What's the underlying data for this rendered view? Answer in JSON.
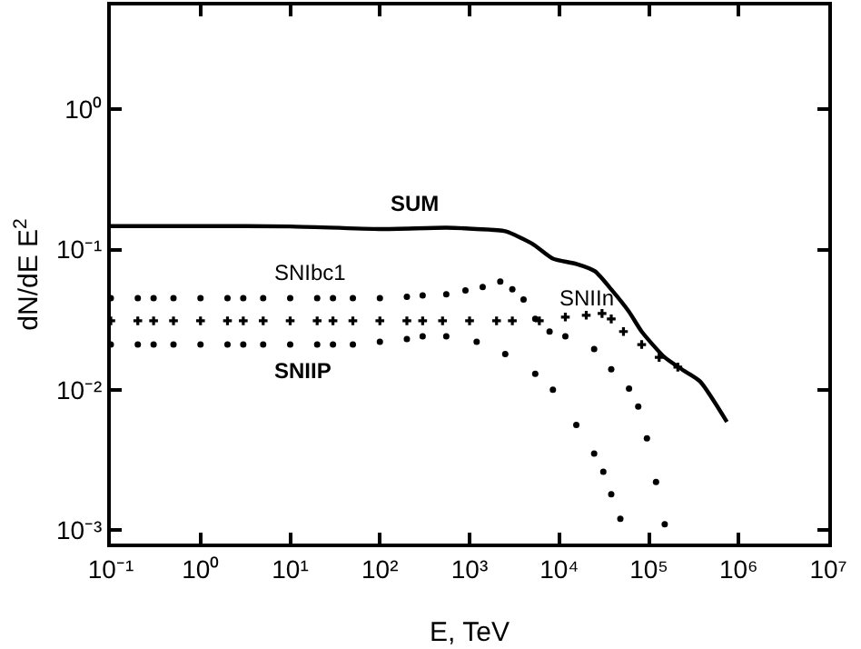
{
  "chart_data": {
    "type": "scatter",
    "xlabel": "E, TeV",
    "ylabel": "dN/dE E$^{2}$",
    "log": "xy",
    "grid": false,
    "legend": false,
    "xlim": [
      0.1,
      10000000
    ],
    "ylim": [
      0.0008,
      5.5
    ],
    "xticks": [
      {
        "value": 0.1,
        "label": "10⁻¹"
      },
      {
        "value": 1,
        "label": "10⁰"
      },
      {
        "value": 10,
        "label": "10¹"
      },
      {
        "value": 100,
        "label": "10²"
      },
      {
        "value": 1000,
        "label": "10³"
      },
      {
        "value": 10000,
        "label": "10⁴"
      },
      {
        "value": 100000,
        "label": "10⁵"
      },
      {
        "value": 1000000,
        "label": "10⁶"
      },
      {
        "value": 10000000,
        "label": "10⁷"
      }
    ],
    "yticks": [
      {
        "value": 0.001,
        "label": "10⁻³"
      },
      {
        "value": 0.01,
        "label": "10⁻²"
      },
      {
        "value": 0.1,
        "label": "10⁻¹"
      },
      {
        "value": 1,
        "label": "10⁰"
      }
    ],
    "series": [
      {
        "name": "SUM",
        "type": "line",
        "line_style": "solid",
        "marker": "none",
        "color": "#000000",
        "x": [
          0.1,
          1,
          10,
          100,
          550,
          1200,
          2500,
          5000,
          8500,
          15500,
          25000,
          38000,
          60000,
          83000,
          150000,
          240000,
          370000,
          740000
        ],
        "values": [
          0.147,
          0.147,
          0.146,
          0.14,
          0.143,
          0.14,
          0.135,
          0.11,
          0.086,
          0.079,
          0.07,
          0.052,
          0.036,
          0.026,
          0.017,
          0.0138,
          0.0115,
          0.0059
        ]
      },
      {
        "name": "SNIbc1",
        "type": "scatter",
        "marker": "circle",
        "color": "#000000",
        "x": [
          0.1,
          0.2,
          0.3,
          0.5,
          1,
          2,
          3,
          5,
          10,
          20,
          30,
          50,
          100,
          200,
          300,
          550,
          900,
          1400,
          2200,
          3000,
          4000,
          5400,
          7800,
          11700,
          24500,
          38000,
          60000,
          76000,
          95000,
          120000,
          150000
        ],
        "values": [
          0.045,
          0.045,
          0.045,
          0.045,
          0.045,
          0.045,
          0.045,
          0.045,
          0.045,
          0.045,
          0.045,
          0.045,
          0.045,
          0.046,
          0.047,
          0.048,
          0.051,
          0.054,
          0.059,
          0.052,
          0.044,
          0.032,
          0.026,
          0.024,
          0.0195,
          0.014,
          0.0102,
          0.0076,
          0.0045,
          0.0022,
          0.0011
        ]
      },
      {
        "name": "SNIIn",
        "type": "scatter",
        "marker": "cross",
        "color": "#000000",
        "x": [
          0.1,
          0.2,
          0.3,
          0.5,
          1,
          2,
          3,
          5,
          10,
          20,
          30,
          50,
          100,
          200,
          300,
          500,
          1000,
          2000,
          3000,
          6000,
          11700,
          20000,
          30000,
          38000,
          52000,
          83000,
          130000,
          210000
        ],
        "values": [
          0.031,
          0.031,
          0.031,
          0.031,
          0.031,
          0.031,
          0.031,
          0.031,
          0.031,
          0.031,
          0.031,
          0.031,
          0.031,
          0.031,
          0.031,
          0.031,
          0.031,
          0.031,
          0.031,
          0.031,
          0.033,
          0.034,
          0.035,
          0.032,
          0.026,
          0.021,
          0.017,
          0.0145
        ]
      },
      {
        "name": "SNIIP",
        "type": "scatter",
        "marker": "circle",
        "color": "#000000",
        "x": [
          0.1,
          0.2,
          0.3,
          0.5,
          1,
          2,
          3,
          5,
          10,
          20,
          30,
          50,
          100,
          200,
          300,
          550,
          1200,
          2500,
          5400,
          8500,
          15500,
          24500,
          31000,
          38000,
          48000
        ],
        "values": [
          0.021,
          0.021,
          0.021,
          0.021,
          0.021,
          0.021,
          0.021,
          0.021,
          0.021,
          0.021,
          0.021,
          0.021,
          0.022,
          0.023,
          0.024,
          0.024,
          0.022,
          0.018,
          0.013,
          0.01,
          0.0056,
          0.0035,
          0.0026,
          0.0018,
          0.0012
        ]
      }
    ]
  }
}
